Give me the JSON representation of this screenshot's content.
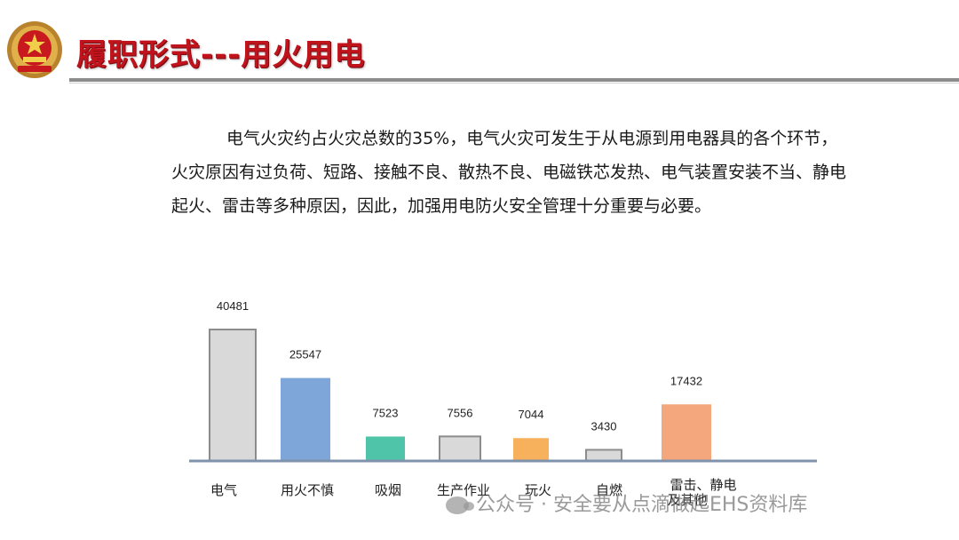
{
  "header": {
    "title": "履职形式---用火用电",
    "emblem_icon": "police-emblem-icon"
  },
  "paragraph": "电气火灾约占火灾总数的35%，电气火灾可发生于从电源到用电器具的各个环节，火灾原因有过负荷、短路、接触不良、散热不良、电磁铁芯发热、电气装置安装不当、静电起火、雷击等多种原因，因此，加强用电防火安全管理十分重要与必要。",
  "chart_data": {
    "type": "bar",
    "categories": [
      "电气",
      "用火不慎",
      "吸烟",
      "生产作业",
      "玩火",
      "自燃",
      "雷击、静电及其他"
    ],
    "values": [
      40481,
      25547,
      7523,
      7556,
      7044,
      3430,
      17432
    ],
    "colors": [
      "#d9d9d9",
      "#7ea6d8",
      "#4fc4a8",
      "#d9d9d9",
      "#f7b15c",
      "#d9d9d9",
      "#f4a77c"
    ],
    "title": "",
    "xlabel": "",
    "ylabel": "",
    "grid": false,
    "legend": "none"
  },
  "watermark": "公众号 · 安全要从点滴做起EHS资料库"
}
